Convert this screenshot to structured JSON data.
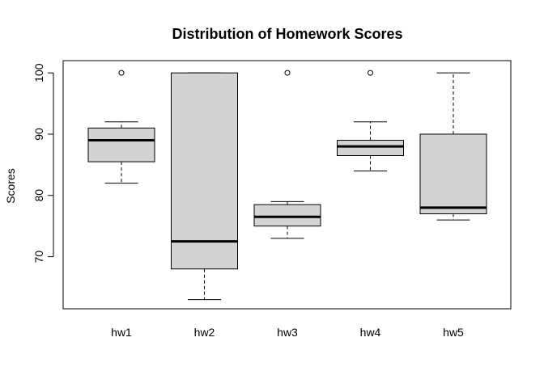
{
  "chart_data": {
    "type": "boxplot",
    "title": "Distribution of Homework Scores",
    "xlabel": "",
    "ylabel": "Scores",
    "ylim": [
      61.5,
      102
    ],
    "yticks": [
      70,
      80,
      90,
      100
    ],
    "grid": false,
    "legend": "none",
    "box_fill": "#d3d3d3",
    "categories": [
      "hw1",
      "hw2",
      "hw3",
      "hw4",
      "hw5"
    ],
    "boxes": [
      {
        "name": "hw1",
        "whisker_low": 82,
        "q1": 85.5,
        "median": 89,
        "q3": 91,
        "whisker_high": 92,
        "outliers": [
          100
        ]
      },
      {
        "name": "hw2",
        "whisker_low": 63,
        "q1": 68,
        "median": 72.5,
        "q3": 100,
        "whisker_high": 100,
        "outliers": []
      },
      {
        "name": "hw3",
        "whisker_low": 73,
        "q1": 75,
        "median": 76.5,
        "q3": 78.5,
        "whisker_high": 79,
        "outliers": [
          100
        ]
      },
      {
        "name": "hw4",
        "whisker_low": 84,
        "q1": 86.5,
        "median": 88,
        "q3": 89,
        "whisker_high": 92,
        "outliers": [
          100
        ]
      },
      {
        "name": "hw5",
        "whisker_low": 76,
        "q1": 77,
        "median": 78,
        "q3": 90,
        "whisker_high": 100,
        "outliers": []
      }
    ]
  }
}
